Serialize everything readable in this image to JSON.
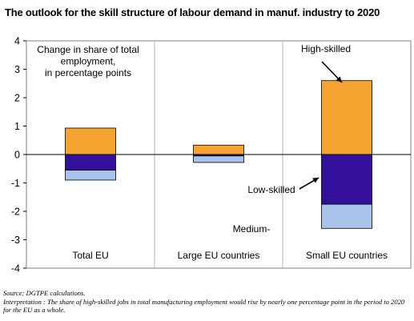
{
  "title": "The outlook for the skill structure of labour demand in manuf. industry to 2020",
  "source": "Source: DGTPE calculations.",
  "interpretation": "Interpretation : The share of high-skilled jobs in total manufacturing employment would rise by nearly one percentage point in the period to 2020 for the EU as a whole.",
  "chart_data": {
    "type": "bar",
    "stacked": true,
    "categories": [
      "Total EU",
      "Large EU countries",
      "Small EU countries"
    ],
    "series": [
      {
        "name": "High-skilled",
        "color": "#F5A331",
        "values": [
          0.93,
          0.33,
          2.6
        ]
      },
      {
        "name": "Low-skilled",
        "color": "#33109A",
        "values": [
          -0.55,
          -0.05,
          -1.75
        ]
      },
      {
        "name": "Medium-",
        "color": "#A8C4EC",
        "values": [
          -0.35,
          -0.23,
          -0.85
        ]
      }
    ],
    "ylabel_lines": [
      "Change in share of total",
      "employment,",
      "in percentage points"
    ],
    "ylim": [
      -4,
      4
    ],
    "yticks": [
      -4,
      -3,
      -2,
      -1,
      0,
      1,
      2,
      3,
      4
    ],
    "grid": false,
    "annotations": [
      "High-skilled",
      "Low-skilled",
      "Medium-"
    ]
  }
}
